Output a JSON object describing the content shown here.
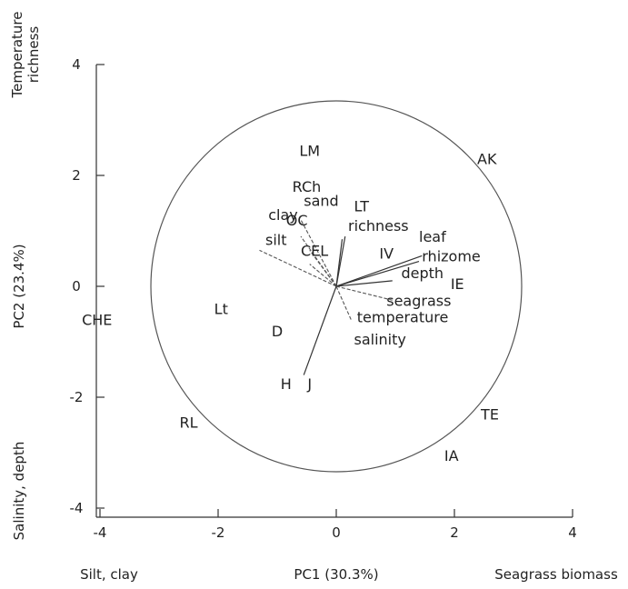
{
  "chart_data": {
    "type": "scatter",
    "title": "",
    "xlabel": "PC1 (30.3%)",
    "ylabel": "PC2 (23.4%)",
    "x_left_label": "Silt, clay",
    "x_right_label": "Seagrass biomass",
    "y_top_label_line1": "Temperature",
    "y_top_label_line2": "richness",
    "y_bottom_label": "Salinity, depth",
    "xlim": [
      -4,
      4
    ],
    "ylim": [
      -4,
      4
    ],
    "x_ticks": [
      "-4",
      "-2",
      "0",
      "2",
      "4"
    ],
    "y_ticks": [
      "4",
      "2",
      "0",
      "-2",
      "-4"
    ],
    "circle_radius": 3.0,
    "points": [
      {
        "label": "LM",
        "x": -0.45,
        "y": 2.45
      },
      {
        "label": "RCh",
        "x": -0.5,
        "y": 1.8
      },
      {
        "label": "AK",
        "x": 2.55,
        "y": 2.3
      },
      {
        "label": "CHE",
        "x": -4.05,
        "y": -0.6
      },
      {
        "label": "Lt",
        "x": -1.95,
        "y": -0.4
      },
      {
        "label": "D",
        "x": -1.0,
        "y": -0.8
      },
      {
        "label": "H",
        "x": -0.85,
        "y": -1.75
      },
      {
        "label": "J",
        "x": -0.45,
        "y": -1.75
      },
      {
        "label": "RL",
        "x": -2.5,
        "y": -2.45
      },
      {
        "label": "TE",
        "x": 2.6,
        "y": -2.3
      },
      {
        "label": "IA",
        "x": 1.95,
        "y": -3.05
      },
      {
        "label": "IE",
        "x": 2.05,
        "y": 0.05
      },
      {
        "label": "IV",
        "x": 0.85,
        "y": 0.6
      }
    ],
    "variables": [
      {
        "label": "sand",
        "x": -0.55,
        "y": 1.45,
        "end_x": -0.6,
        "end_y": 1.2,
        "style": "dashed"
      },
      {
        "label": "clay",
        "x": -1.15,
        "y": 1.2,
        "end_x": -0.6,
        "end_y": 0.9,
        "style": "dashed"
      },
      {
        "label": "OC",
        "x": -0.85,
        "y": 1.1,
        "end_x": -0.45,
        "end_y": 0.65,
        "style": "dashed"
      },
      {
        "label": "silt",
        "x": -1.2,
        "y": 0.75,
        "end_x": -1.3,
        "end_y": 0.65,
        "style": "dashed"
      },
      {
        "label": "CEL",
        "x": -0.6,
        "y": 0.55,
        "end_x": -0.45,
        "end_y": 0.4,
        "style": "dashed"
      },
      {
        "label": "LT",
        "x": 0.3,
        "y": 1.35,
        "end_x": 0.15,
        "end_y": 0.9,
        "style": "solid"
      },
      {
        "label": "richness",
        "x": 0.2,
        "y": 1.0,
        "end_x": 0.1,
        "end_y": 0.85,
        "style": "solid"
      },
      {
        "label": "leaf",
        "x": 1.4,
        "y": 0.8,
        "end_x": 1.45,
        "end_y": 0.55,
        "style": "solid"
      },
      {
        "label": "rhizome",
        "x": 1.45,
        "y": 0.45,
        "end_x": 1.4,
        "end_y": 0.45,
        "style": "solid"
      },
      {
        "label": "depth",
        "x": 1.1,
        "y": 0.15,
        "end_x": 0.95,
        "end_y": 0.1,
        "style": "solid"
      },
      {
        "label": "seagrass",
        "x": 0.85,
        "y": -0.35,
        "end_x": 0.95,
        "end_y": -0.25,
        "style": "dashed"
      },
      {
        "label": "temperature",
        "x": 0.35,
        "y": -0.65,
        "end_x": 0.25,
        "end_y": -0.6,
        "style": "dashed"
      },
      {
        "label": "salinity",
        "x": 0.3,
        "y": -1.05,
        "end_x": -0.55,
        "end_y": -1.6,
        "style": "solid"
      }
    ]
  }
}
